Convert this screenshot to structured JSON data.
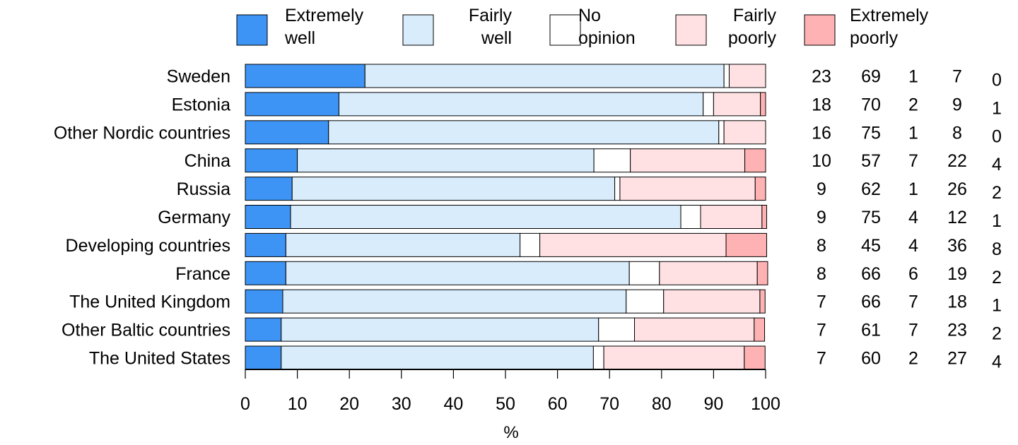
{
  "chart_data": {
    "type": "bar",
    "orientation": "horizontal",
    "stacked": true,
    "xlabel": "%",
    "xlim": [
      0,
      100
    ],
    "xticks": [
      "0",
      "10",
      "20",
      "30",
      "40",
      "50",
      "60",
      "70",
      "80",
      "90",
      "100"
    ],
    "grid": false,
    "legend_position": "top",
    "categories": [
      "Sweden",
      "Estonia",
      "Other Nordic countries",
      "China",
      "Russia",
      "Germany",
      "Developing countries",
      "France",
      "The United Kingdom",
      "Other Baltic countries",
      "The United States"
    ],
    "series": [
      {
        "name": "Extremely well",
        "legend_lines": [
          "Extremely",
          "well"
        ],
        "color": "#3d94f5",
        "values": [
          23,
          18,
          16,
          10,
          9,
          8.7,
          7.8,
          7.8,
          7.2,
          6.9,
          6.9
        ]
      },
      {
        "name": "Fairly well",
        "legend_lines": [
          "Fairly",
          "well"
        ],
        "color": "#d8ecfc",
        "values": [
          69,
          70,
          75,
          57,
          62,
          75,
          45,
          66,
          66,
          61,
          60
        ]
      },
      {
        "name": "No opinion",
        "legend_lines": [
          "No",
          "opinion"
        ],
        "color": "#ffffff",
        "values": [
          1,
          2,
          1,
          7,
          1,
          3.8,
          3.8,
          5.8,
          7.2,
          6.9,
          2
        ]
      },
      {
        "name": "Fairly poorly",
        "legend_lines": [
          "Fairly",
          "poorly"
        ],
        "color": "#ffe1e3",
        "values": [
          7,
          9,
          8,
          22,
          26,
          11.8,
          35.8,
          18.8,
          18.5,
          23,
          27
        ]
      },
      {
        "name": "Extremely poorly",
        "legend_lines": [
          "Extremely",
          "poorly"
        ],
        "color": "#ffb2b3",
        "values": [
          0,
          1,
          0,
          4,
          2,
          0.9,
          7.8,
          2,
          1,
          2,
          4
        ]
      }
    ],
    "value_table": [
      [
        "23",
        "69",
        "1",
        "7",
        "0"
      ],
      [
        "18",
        "70",
        "2",
        "9",
        "1"
      ],
      [
        "16",
        "75",
        "1",
        "8",
        "0"
      ],
      [
        "10",
        "57",
        "7",
        "22",
        "4"
      ],
      [
        "9",
        "62",
        "1",
        "26",
        "2"
      ],
      [
        "9",
        "75",
        "4",
        "12",
        "1"
      ],
      [
        "8",
        "45",
        "4",
        "36",
        "8"
      ],
      [
        "8",
        "66",
        "6",
        "19",
        "2"
      ],
      [
        "7",
        "66",
        "7",
        "18",
        "1"
      ],
      [
        "7",
        "61",
        "7",
        "23",
        "2"
      ],
      [
        "7",
        "60",
        "2",
        "27",
        "4"
      ]
    ]
  }
}
